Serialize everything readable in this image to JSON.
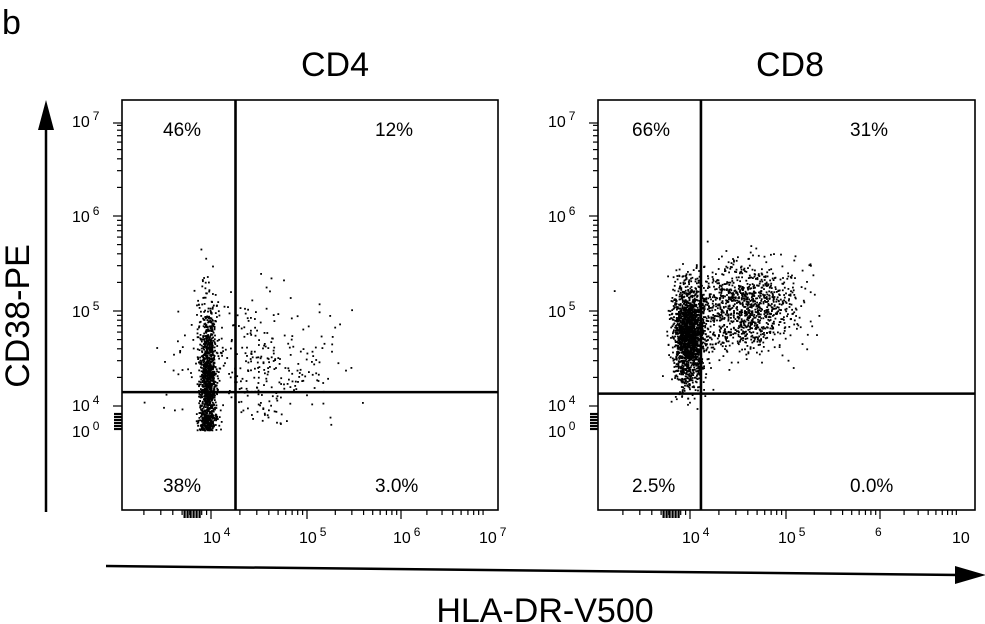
{
  "figure": {
    "panel_letter": "b",
    "y_axis_title": "CD38-PE",
    "x_axis_title": "HLA-DR-V500"
  },
  "chart_data": [
    {
      "type": "scatter",
      "title": "CD4",
      "xlabel": "HLA-DR-V500",
      "ylabel": "CD38-PE",
      "x_scale": "log",
      "y_scale": "log",
      "x_ticks": [
        {
          "base": "10",
          "exp": "4"
        },
        {
          "base": "10",
          "exp": "5"
        },
        {
          "base": "10",
          "exp": "6"
        },
        {
          "base": "10",
          "exp": "7"
        }
      ],
      "y_ticks": [
        {
          "base": "10",
          "exp": "7"
        },
        {
          "base": "10",
          "exp": "6"
        },
        {
          "base": "10",
          "exp": "5"
        },
        {
          "base": "10",
          "exp": "4"
        },
        {
          "base": "10",
          "exp": "0"
        }
      ],
      "gate": {
        "x": 18000,
        "y": 14000
      },
      "quadrants": {
        "upper_left": "46%",
        "upper_right": "12%",
        "lower_left": "38%",
        "lower_right": "3.0%"
      },
      "populations": [
        {
          "name": "",
          "count": 1200,
          "x_log10": {
            "mean": 3.96,
            "sd": 0.045
          },
          "y_log10": {
            "mean": 4.25,
            "sd": 0.4
          },
          "y_log10_min": 3.75
        },
        {
          "name": "",
          "count": 320,
          "x_log10": {
            "mean": 4.5,
            "sd": 0.4
          },
          "y_log10": {
            "mean": 4.45,
            "sd": 0.35
          },
          "y_log10_min": 3.8
        }
      ]
    },
    {
      "type": "scatter",
      "title": "CD8",
      "xlabel": "HLA-DR-V500",
      "ylabel": "CD38-PE",
      "x_scale": "log",
      "y_scale": "log",
      "x_ticks": [
        {
          "base": "10",
          "exp": "4"
        },
        {
          "base": "10",
          "exp": "5"
        },
        {
          "base": "",
          "exp": "6"
        },
        {
          "base": "10",
          "exp": ""
        }
      ],
      "y_ticks": [
        {
          "base": "10",
          "exp": "7"
        },
        {
          "base": "10",
          "exp": "6"
        },
        {
          "base": "10",
          "exp": "5"
        },
        {
          "base": "10",
          "exp": "4"
        },
        {
          "base": "10",
          "exp": "0"
        }
      ],
      "gate": {
        "x": 13000,
        "y": 13500
      },
      "quadrants": {
        "upper_left": "66%",
        "upper_right": "31%",
        "lower_left": "2.5%",
        "lower_right": "0.0%"
      },
      "populations": [
        {
          "name": "",
          "count": 1800,
          "x_log10": {
            "mean": 3.98,
            "sd": 0.08
          },
          "y_log10": {
            "mean": 4.75,
            "sd": 0.25
          },
          "y_log10_min": 3.95
        },
        {
          "name": "",
          "count": 1200,
          "x_log10": {
            "mean": 4.55,
            "sd": 0.28
          },
          "y_log10": {
            "mean": 5.05,
            "sd": 0.22
          },
          "y_log10_min": 4.1
        }
      ]
    }
  ]
}
